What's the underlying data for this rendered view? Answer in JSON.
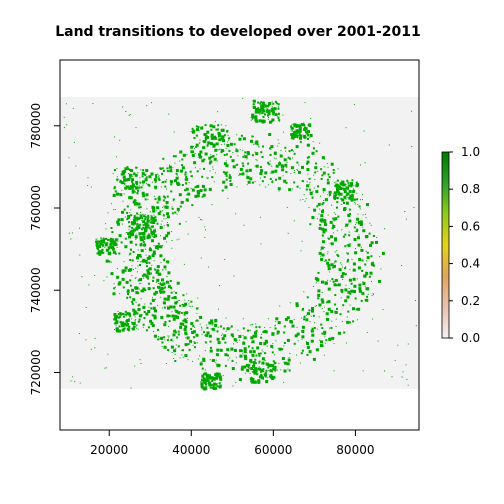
{
  "chart_data": {
    "type": "heatmap",
    "title": "Land transitions to developed over 2001-2011",
    "xlabel": "",
    "ylabel": "",
    "x_ticks": [
      20000,
      40000,
      60000,
      80000
    ],
    "x_tick_labels": [
      "20000",
      "40000",
      "60000",
      "80000"
    ],
    "y_ticks": [
      720000,
      740000,
      760000,
      780000
    ],
    "y_tick_labels": [
      "720000",
      "740000",
      "760000",
      "780000"
    ],
    "xlim": [
      8000,
      95500
    ],
    "ylim": [
      706000,
      796000
    ],
    "raster_extent": {
      "xmin": 8000,
      "xmax": 95500,
      "ymin": 716000,
      "ymax": 787000
    },
    "colorbar": {
      "range": [
        0.0,
        1.0
      ],
      "ticks": [
        0.0,
        0.2,
        0.4,
        0.6,
        0.8,
        1.0
      ],
      "tick_labels": [
        "0.0",
        "0.2",
        "0.4",
        "0.6",
        "0.8",
        "1.0"
      ],
      "colors": [
        "#f2f2f2",
        "#ecc1b2",
        "#e0a55e",
        "#e6d21a",
        "#8fcc1e",
        "#2ea02a",
        "#007b00"
      ]
    },
    "background_color": "#f2f2f2",
    "developed_color": "#00a800",
    "value_range": [
      0,
      1
    ],
    "dominant_values": [
      0,
      1
    ],
    "developed_clusters_note": "",
    "grid": false,
    "legend_position": "right"
  }
}
